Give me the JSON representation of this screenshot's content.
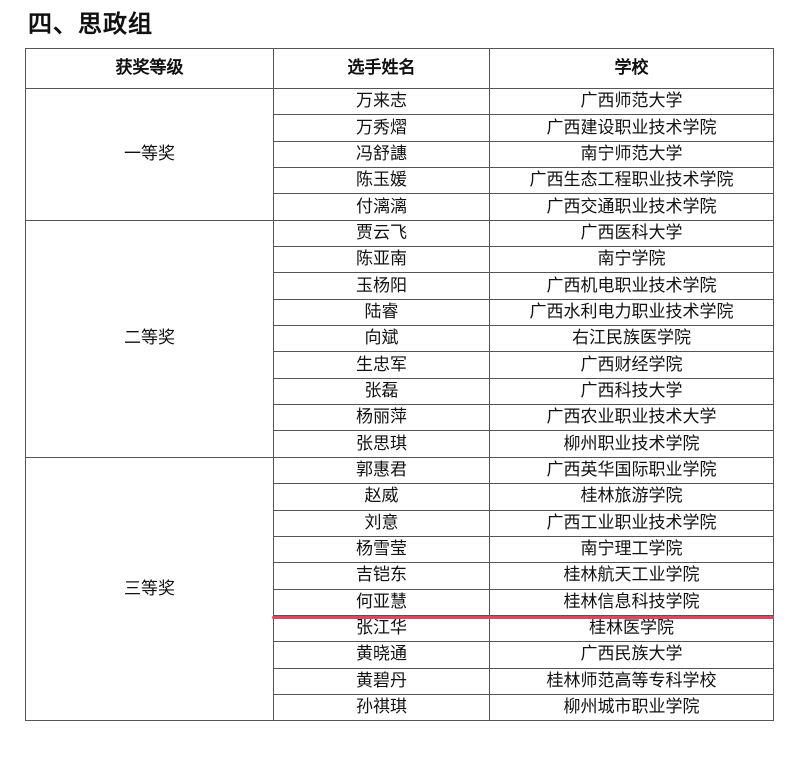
{
  "title": "四、思政组",
  "headers": [
    "获奖等级",
    "选手姓名",
    "学校"
  ],
  "groups": [
    {
      "level": "一等奖",
      "rows": [
        [
          "万来志",
          "广西师范大学"
        ],
        [
          "万秀熠",
          "广西建设职业技术学院"
        ],
        [
          "冯舒譓",
          "南宁师范大学"
        ],
        [
          "陈玉媛",
          "广西生态工程职业技术学院"
        ],
        [
          "付漓漓",
          "广西交通职业技术学院"
        ]
      ]
    },
    {
      "level": "二等奖",
      "rows": [
        [
          "贾云飞",
          "广西医科大学"
        ],
        [
          "陈亚南",
          "南宁学院"
        ],
        [
          "玉杨阳",
          "广西机电职业技术学院"
        ],
        [
          "陆睿",
          "广西水利电力职业技术学院"
        ],
        [
          "向斌",
          "右江民族医学院"
        ],
        [
          "生忠军",
          "广西财经学院"
        ],
        [
          "张磊",
          "广西科技大学"
        ],
        [
          "杨丽萍",
          "广西农业职业技术大学"
        ],
        [
          "张思琪",
          "柳州职业技术学院"
        ]
      ]
    },
    {
      "level": "三等奖",
      "rows": [
        [
          "郭惠君",
          "广西英华国际职业学院"
        ],
        [
          "赵威",
          "桂林旅游学院"
        ],
        [
          "刘意",
          "广西工业职业技术学院"
        ],
        [
          "杨雪莹",
          "南宁理工学院"
        ],
        [
          "吉铠东",
          "桂林航天工业学院"
        ],
        [
          "何亚慧",
          "桂林信息科技学院"
        ],
        [
          "张江华",
          "桂林医学院"
        ],
        [
          "黄晓通",
          "广西民族大学"
        ],
        [
          "黄碧丹",
          "桂林师范高等专科学校"
        ],
        [
          "孙祺琪",
          "柳州城市职业学院"
        ]
      ]
    }
  ],
  "highlight_color": "#e0465e"
}
